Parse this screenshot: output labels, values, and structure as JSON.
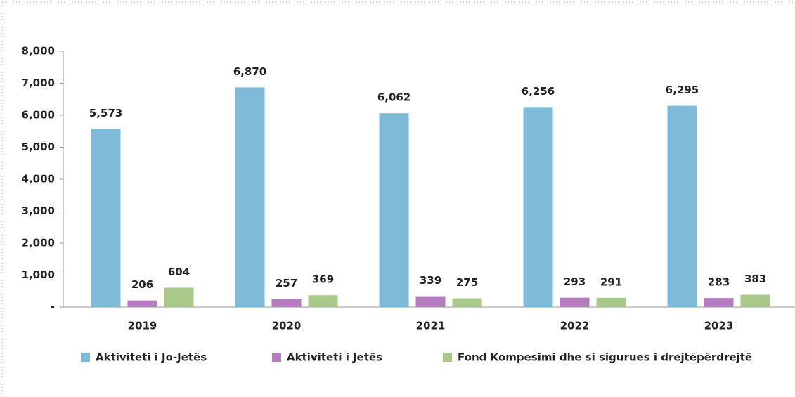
{
  "chart_data": {
    "type": "bar",
    "categories": [
      "2019",
      "2020",
      "2021",
      "2022",
      "2023"
    ],
    "series": [
      {
        "name": "Aktiviteti i Jo-Jetës",
        "color": "#7fbad8",
        "values": [
          5573,
          6870,
          6062,
          6256,
          6295
        ],
        "value_labels": [
          "5,573",
          "6,870",
          "6,062",
          "6,256",
          "6,295"
        ]
      },
      {
        "name": "Aktiviteti i Jetës",
        "color": "#b57cc0",
        "values": [
          206,
          257,
          339,
          293,
          283
        ]
      },
      {
        "name": "Fond Kompesimi dhe si sigurues i drejtëpërdrejtë",
        "color": "#a9c98a",
        "values": [
          604,
          369,
          275,
          291,
          383
        ]
      }
    ],
    "ylim": [
      0,
      8000
    ],
    "yticks": [
      {
        "value": 0,
        "label": "-"
      },
      {
        "value": 1000,
        "label": "1,000"
      },
      {
        "value": 2000,
        "label": "2,000"
      },
      {
        "value": 3000,
        "label": "3,000"
      },
      {
        "value": 4000,
        "label": "4,000"
      },
      {
        "value": 5000,
        "label": "5,000"
      },
      {
        "value": 6000,
        "label": "6,000"
      },
      {
        "value": 7000,
        "label": "7,000"
      },
      {
        "value": 8000,
        "label": "8,000"
      }
    ],
    "legend": "bottom"
  }
}
